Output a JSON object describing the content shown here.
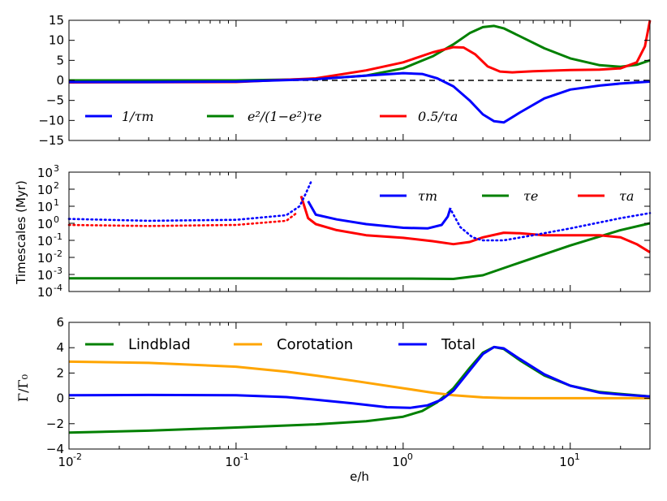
{
  "chart_data": [
    {
      "type": "line",
      "xscale": "log",
      "xlim": [
        0.01,
        30
      ],
      "ylim": [
        -15,
        15
      ],
      "yticks": [
        "15",
        "10",
        "5",
        "0",
        "−5",
        "−10",
        "−15"
      ],
      "ylabel": "",
      "zero_line": true,
      "legend": "bottom-left, horizontal",
      "series": [
        {
          "name": "1/τ_m",
          "label": "1/τm",
          "color": "#0000ff",
          "x": [
            0.01,
            0.03,
            0.1,
            0.3,
            0.6,
            1,
            1.3,
            1.6,
            2,
            2.5,
            3,
            3.5,
            4,
            5,
            7,
            10,
            15,
            20,
            30
          ],
          "y": [
            -0.4,
            -0.4,
            -0.3,
            0.3,
            1.2,
            1.8,
            1.6,
            0.5,
            -1.5,
            -5,
            -8.5,
            -10.2,
            -10.5,
            -8,
            -4.5,
            -2.3,
            -1.3,
            -0.8,
            -0.3
          ]
        },
        {
          "name": "e²/(1−e²)τ_e",
          "label": "e²/(1−e²)τe",
          "color": "#008000",
          "x": [
            0.01,
            0.1,
            0.3,
            0.6,
            1,
            1.5,
            2,
            2.5,
            3,
            3.5,
            4,
            5,
            7,
            10,
            15,
            20,
            25,
            30
          ],
          "y": [
            0,
            0,
            0.3,
            1.2,
            3,
            6,
            9,
            11.8,
            13.3,
            13.6,
            13,
            11,
            8,
            5.5,
            3.8,
            3.4,
            3.9,
            5
          ]
        },
        {
          "name": "0.5/τ_a",
          "label": "0.5/τa",
          "color": "#ff0000",
          "x": [
            0.01,
            0.1,
            0.3,
            0.6,
            1,
            1.5,
            2,
            2.3,
            2.7,
            3.2,
            3.8,
            4.5,
            6,
            10,
            15,
            20,
            25,
            28,
            30
          ],
          "y": [
            -0.5,
            -0.4,
            0.5,
            2.5,
            4.5,
            7,
            8.3,
            8.2,
            6.5,
            3.5,
            2.2,
            2,
            2.3,
            2.6,
            2.7,
            3,
            4.5,
            8.5,
            15
          ]
        }
      ]
    },
    {
      "type": "line",
      "xscale": "log",
      "yscale": "log",
      "xlim": [
        0.01,
        30
      ],
      "ylim": [
        0.0001,
        1000
      ],
      "ylabel": "Timescales (Myr)",
      "ytick_mantissa": "10",
      "ytick_exponents": [
        "3",
        "2",
        "1",
        "0",
        "-1",
        "-2",
        "-3",
        "-4"
      ],
      "legend": "top-right, horizontal",
      "series": [
        {
          "name": "τ_m",
          "label": "τm",
          "color": "#0000ff",
          "segments": [
            {
              "style": "dotted",
              "x": [
                0.01,
                0.03,
                0.1,
                0.2,
                0.24,
                0.26,
                0.28
              ],
              "y": [
                1.8,
                1.4,
                1.6,
                3,
                10,
                50,
                250
              ]
            },
            {
              "style": "solid",
              "x": [
                0.27,
                0.3,
                0.4,
                0.6,
                1,
                1.4,
                1.7,
                1.85,
                1.92
              ],
              "y": [
                20,
                3.2,
                1.7,
                0.9,
                0.55,
                0.5,
                0.8,
                2.5,
                8
              ]
            },
            {
              "style": "dotted",
              "x": [
                1.95,
                2.2,
                2.6,
                3,
                4,
                6,
                10,
                20,
                30
              ],
              "y": [
                5,
                0.6,
                0.15,
                0.1,
                0.1,
                0.2,
                0.5,
                2,
                4
              ]
            }
          ]
        },
        {
          "name": "τ_e",
          "label": "τe",
          "color": "#008000",
          "segments": [
            {
              "style": "solid",
              "x": [
                0.01,
                0.1,
                0.5,
                1,
                2,
                3,
                5,
                10,
                20,
                30
              ],
              "y": [
                0.0006,
                0.0006,
                0.00058,
                0.00057,
                0.00055,
                0.0009,
                0.005,
                0.05,
                0.4,
                1
              ]
            }
          ]
        },
        {
          "name": "τ_a",
          "label": "τa",
          "color": "#ff0000",
          "segments": [
            {
              "style": "dotted",
              "x": [
                0.01,
                0.03,
                0.1,
                0.2,
                0.23
              ],
              "y": [
                0.8,
                0.7,
                0.8,
                1.4,
                4
              ]
            },
            {
              "style": "solid",
              "x": [
                0.245,
                0.27,
                0.3,
                0.4,
                0.6,
                1,
                1.5,
                2,
                2.5,
                3,
                4,
                5,
                7,
                10,
                15,
                20,
                25,
                30
              ],
              "y": [
                40,
                2,
                0.9,
                0.4,
                0.2,
                0.14,
                0.09,
                0.06,
                0.08,
                0.15,
                0.28,
                0.26,
                0.2,
                0.2,
                0.2,
                0.15,
                0.06,
                0.02
              ]
            }
          ]
        }
      ]
    },
    {
      "type": "line",
      "xscale": "log",
      "xlim": [
        0.01,
        30
      ],
      "ylim": [
        -4,
        6
      ],
      "yticks": [
        "6",
        "4",
        "2",
        "0",
        "−2",
        "−4"
      ],
      "ylabel": "Γ/Γ₀",
      "xlabel": "e/h",
      "xtick_mantissa": "10",
      "xtick_exponents": [
        "-2",
        "-1",
        "0",
        "1"
      ],
      "legend": "top-left, horizontal",
      "series": [
        {
          "name": "Lindblad",
          "label": "Lindblad",
          "color": "#008000",
          "x": [
            0.01,
            0.03,
            0.1,
            0.3,
            0.6,
            1,
            1.3,
            1.6,
            2,
            2.5,
            3,
            3.5,
            4,
            5,
            7,
            10,
            15,
            20,
            30
          ],
          "y": [
            -2.7,
            -2.55,
            -2.3,
            -2.05,
            -1.8,
            -1.45,
            -1,
            -0.3,
            0.8,
            2.4,
            3.6,
            4.05,
            3.9,
            3,
            1.8,
            1,
            0.5,
            0.35,
            0.15
          ]
        },
        {
          "name": "Corotation",
          "label": "Corotation",
          "color": "#ffa500",
          "x": [
            0.01,
            0.03,
            0.1,
            0.2,
            0.3,
            0.5,
            1,
            1.5,
            2,
            3,
            4,
            6,
            10,
            20,
            30
          ],
          "y": [
            2.9,
            2.8,
            2.5,
            2.1,
            1.8,
            1.4,
            0.8,
            0.45,
            0.25,
            0.08,
            0.03,
            0.01,
            0.01,
            0.01,
            0.01
          ]
        },
        {
          "name": "Total",
          "label": "Total",
          "color": "#0000ff",
          "x": [
            0.01,
            0.03,
            0.1,
            0.2,
            0.3,
            0.5,
            0.8,
            1.1,
            1.4,
            1.7,
            2,
            2.5,
            3,
            3.5,
            4,
            5,
            7,
            10,
            15,
            20,
            30
          ],
          "y": [
            0.25,
            0.27,
            0.25,
            0.1,
            -0.1,
            -0.4,
            -0.7,
            -0.75,
            -0.55,
            -0.1,
            0.6,
            2.2,
            3.5,
            4.05,
            3.95,
            3.1,
            1.9,
            1,
            0.45,
            0.3,
            0.15
          ]
        }
      ]
    }
  ]
}
